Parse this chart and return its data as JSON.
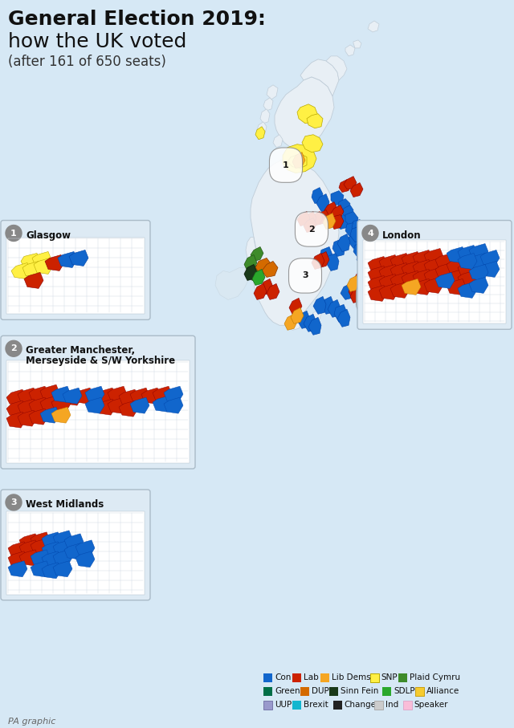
{
  "title_line1": "General Election 2019:",
  "title_line2": "how the UK voted",
  "subtitle": "(after 161 of 650 seats)",
  "bg_color": "#d6e8f5",
  "map_fill": "#e8eff5",
  "map_edge": "#c0cdd8",
  "inset_fill": "#ddeaf4",
  "inset_edge": "#aabbc8",
  "colors": {
    "Con": "#1166cc",
    "Lab": "#cc2200",
    "LibDems": "#f5a623",
    "SNP": "#fff044",
    "PlaidCymru": "#3e8b2a",
    "Green": "#006e46",
    "DUP": "#d46a00",
    "SinnFein": "#1a3a1a",
    "SDLP": "#2aa82c",
    "Alliance": "#f6cb2f",
    "UUP": "#9999cc",
    "Brexit": "#12b6cf",
    "Change": "#222222",
    "Ind": "#cccccc",
    "Speaker": "#f9bdd8"
  },
  "legend_rows": [
    [
      [
        "Con",
        "#1166cc"
      ],
      [
        "Lab",
        "#cc2200"
      ],
      [
        "Lib Dems",
        "#f5a623"
      ],
      [
        "SNP",
        "#fff044"
      ],
      [
        "Plaid Cymru",
        "#3e8b2a"
      ]
    ],
    [
      [
        "Green",
        "#006e46"
      ],
      [
        "DUP",
        "#d46a00"
      ],
      [
        "Sinn Fein",
        "#1a3a1a"
      ],
      [
        "SDLP",
        "#2aa82c"
      ],
      [
        "Alliance",
        "#f6cb2f"
      ]
    ],
    [
      [
        "UUP",
        "#9999cc"
      ],
      [
        "Brexit",
        "#12b6cf"
      ],
      [
        "Change",
        "#222222"
      ],
      [
        "Ind",
        "#cccccc"
      ],
      [
        "Speaker",
        "#f9bdd8"
      ]
    ]
  ],
  "legend_border": {
    "SNP": "#b8a800",
    "Ind": "#aaaaaa",
    "Speaker": "#ddaacc",
    "UUP": "#7777aa",
    "Alliance": "#c8a010"
  }
}
